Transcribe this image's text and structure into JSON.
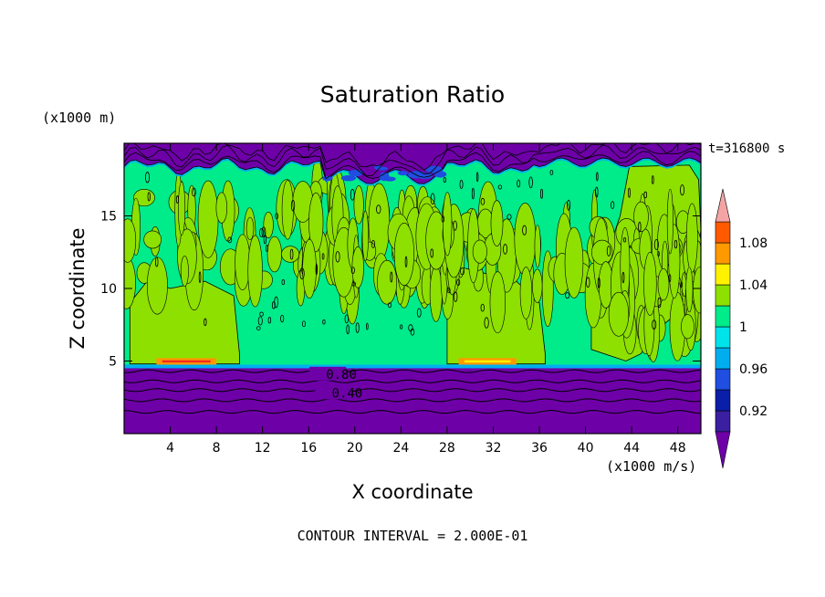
{
  "chart_data": {
    "type": "heatmap",
    "title": "Saturation Ratio",
    "xlabel": "X coordinate",
    "ylabel": "Z coordinate",
    "x_unit": "(x1000 m/s)",
    "y_unit": "(x1000 m)",
    "time_label": "t=316800 s",
    "footer": "CONTOUR INTERVAL = 2.000E-01",
    "xlim": [
      0,
      50
    ],
    "ylim": [
      0,
      20
    ],
    "x_ticks": [
      "4",
      "8",
      "12",
      "16",
      "20",
      "24",
      "28",
      "32",
      "36",
      "40",
      "44",
      "48"
    ],
    "y_ticks": [
      "5",
      "10",
      "15"
    ],
    "contour_labels": [
      {
        "text": "0.80",
        "x": 17.5,
        "z": 4.1
      },
      {
        "text": "0.40",
        "x": 18,
        "z": 2.8
      }
    ],
    "colorbar": {
      "levels": [
        0.9,
        0.92,
        0.94,
        0.96,
        0.98,
        1.0,
        1.02,
        1.04,
        1.06,
        1.08,
        1.1
      ],
      "tick_labels": [
        "0.92",
        "0.96",
        "1",
        "1.04",
        "1.08"
      ],
      "colors": [
        "#3a1fa0",
        "#0a1ea8",
        "#1f4ee0",
        "#00aef0",
        "#00e3ea",
        "#00eb8a",
        "#8ee000",
        "#fff200",
        "#ff9900",
        "#ff5a00",
        "#f42a20"
      ],
      "under_color": "#6e00a8",
      "over_color": "#f4a4a4"
    },
    "regions": {
      "upper_dry_layer": {
        "z_range": [
          18.5,
          20
        ],
        "value": "< 0.90",
        "color": "#6e00a8"
      },
      "near_saturated_bulk": {
        "z_range": [
          4.7,
          18.5
        ],
        "value": "0.98-1.00",
        "color": "#00eb8a"
      },
      "supersaturated_patches": {
        "value": "1.00-1.02",
        "color": "#8ee000"
      },
      "lower_dry_layer": {
        "z_range": [
          0,
          4.5
        ],
        "value": "< 0.90",
        "color": "#6e00a8"
      }
    },
    "grid": false,
    "legend_position": "right"
  }
}
